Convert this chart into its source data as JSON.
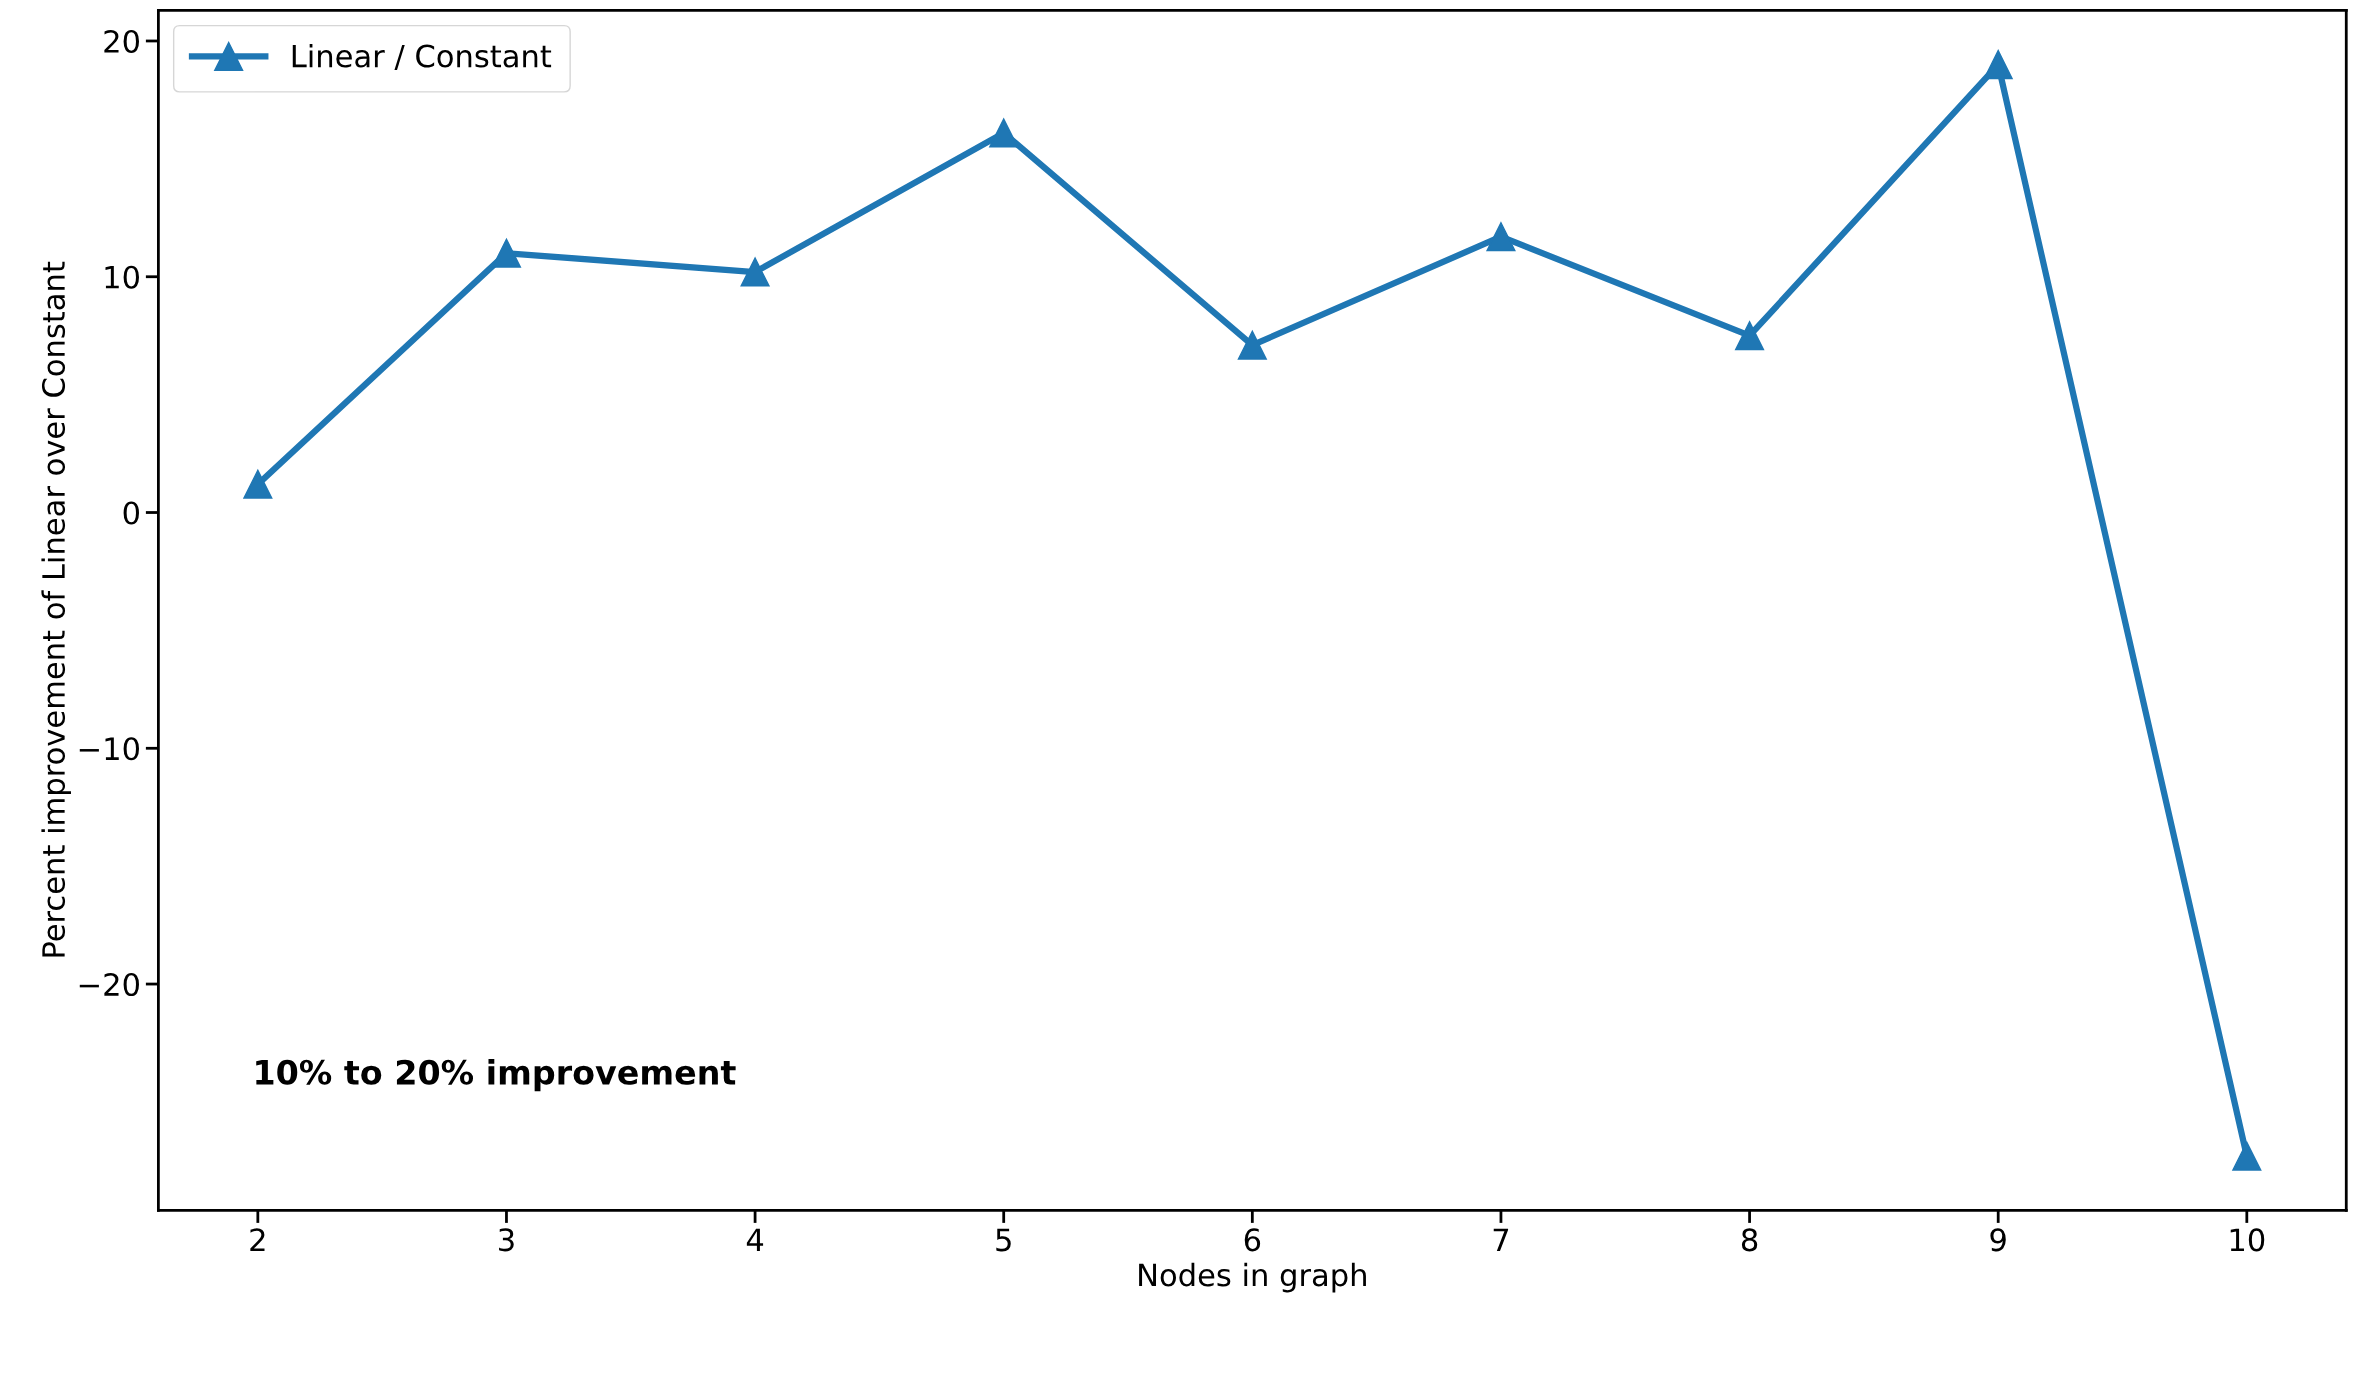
{
  "chart_data": {
    "type": "line",
    "xlabel": "Nodes in graph",
    "ylabel": "Percent improvement of Linear over Constant",
    "x": [
      2,
      3,
      4,
      5,
      6,
      7,
      8,
      9,
      10
    ],
    "series": [
      {
        "name": "Linear / Constant",
        "color": "#1f77b4",
        "values": [
          1.2,
          11.0,
          10.2,
          16.1,
          7.1,
          11.7,
          7.5,
          19.0,
          -27.3
        ]
      }
    ],
    "xlim": [
      1.6,
      10.4
    ],
    "xticks": [
      2,
      3,
      4,
      5,
      6,
      7,
      8,
      9,
      10
    ],
    "ylim": [
      -29.6,
      21.3
    ],
    "yticks": [
      -20,
      -10,
      0,
      10,
      20
    ],
    "annotations": [
      "10% to 20% improvement"
    ],
    "marker": "triangle",
    "line_style": "solid",
    "legend": "top left",
    "grid": false
  }
}
